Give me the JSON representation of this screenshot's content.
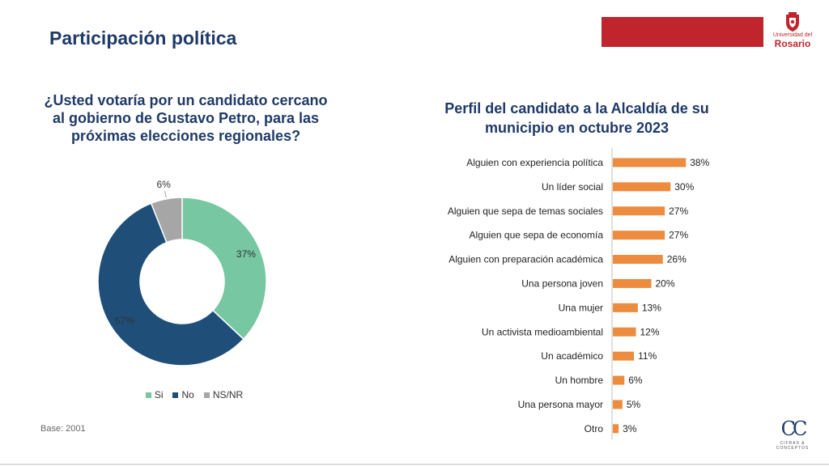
{
  "header": {
    "title": "Participación política",
    "accent_color": "#c0252d",
    "brand_color": "#1f3a68"
  },
  "logo": {
    "line1": "Universidad del",
    "line2": "Rosario"
  },
  "footer": {
    "base_note": "Base: 2001",
    "brand_logo_monogram": "CC",
    "brand_logo_text": "CIFRAS & CONCEPTOS"
  },
  "chart_data": [
    {
      "type": "pie",
      "title": "¿Usted votaría por un candidato cercano al gobierno de Gustavo Petro, para las próximas elecciones regionales?",
      "categories": [
        "Si",
        "No",
        "NS/NR"
      ],
      "values": [
        37,
        57,
        6
      ],
      "labels": [
        "37%",
        "57%",
        "6%"
      ],
      "colors": [
        "#76c7a2",
        "#1f4e79",
        "#a6a6a6"
      ],
      "donut": true,
      "legend_position": "bottom"
    },
    {
      "type": "bar",
      "orientation": "horizontal",
      "title": "Perfil del candidato a la Alcaldía de su municipio en octubre 2023",
      "categories": [
        "Alguien con experiencia política",
        "Un líder social",
        "Alguien que sepa de temas sociales",
        "Alguien que sepa de economía",
        "Alguien con preparación académica",
        "Una persona joven",
        "Una mujer",
        "Un activista medioambiental",
        "Un académico",
        "Un hombre",
        "Una persona mayor",
        "Otro"
      ],
      "values": [
        38,
        30,
        27,
        27,
        26,
        20,
        13,
        12,
        11,
        6,
        5,
        3
      ],
      "labels": [
        "38%",
        "30%",
        "27%",
        "27%",
        "26%",
        "20%",
        "13%",
        "12%",
        "11%",
        "6%",
        "5%",
        "3%"
      ],
      "color": "#ed8b3e",
      "xlim": [
        0,
        40
      ]
    }
  ]
}
